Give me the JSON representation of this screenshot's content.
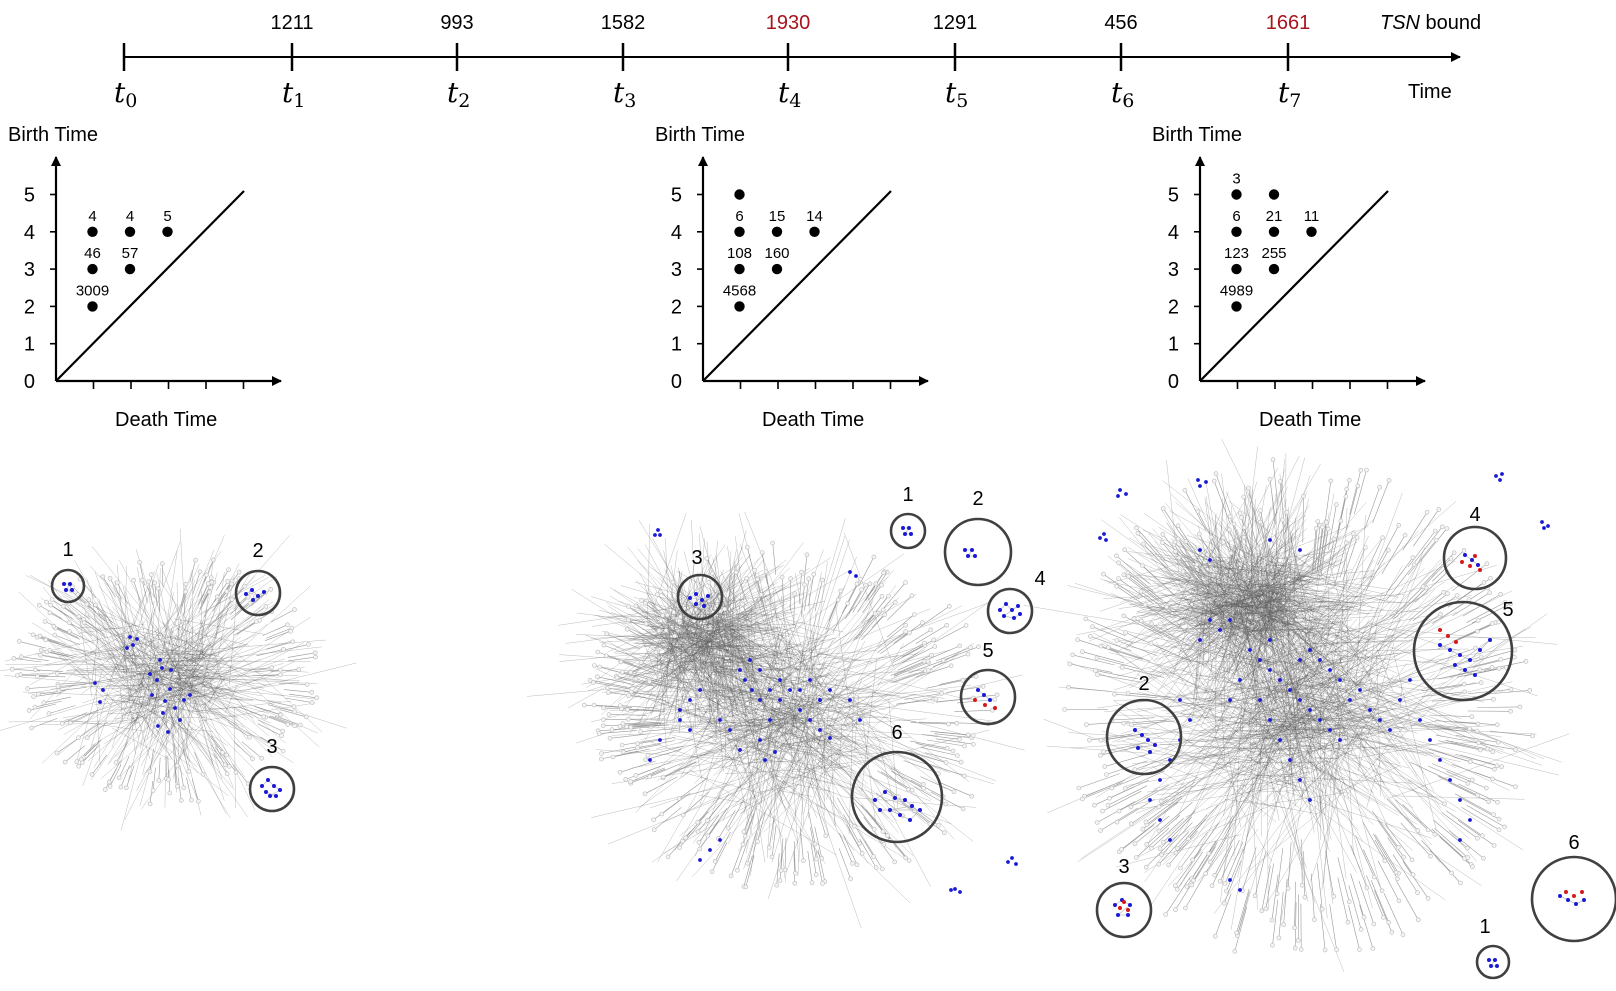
{
  "timeline": {
    "bounds": [
      {
        "value": "1211",
        "highlight": false
      },
      {
        "value": "993",
        "highlight": false
      },
      {
        "value": "1582",
        "highlight": false
      },
      {
        "value": "1930",
        "highlight": true
      },
      {
        "value": "1291",
        "highlight": false
      },
      {
        "value": "456",
        "highlight": false
      },
      {
        "value": "1661",
        "highlight": true
      }
    ],
    "time_labels": [
      "t0",
      "t1",
      "t2",
      "t3",
      "t4",
      "t5",
      "t6",
      "t7"
    ],
    "bound_label_italic": "TSN",
    "bound_label_rest": " bound",
    "axis_label": "Time",
    "highlight_color": "#a8141c"
  },
  "diagrams": [
    {
      "ylabel": "Birth Time",
      "xlabel": "Death Time",
      "yticks": [
        "0",
        "1",
        "2",
        "3",
        "4",
        "5"
      ],
      "points": [
        {
          "death": 1,
          "birth": 2,
          "count": "3009"
        },
        {
          "death": 1,
          "birth": 3,
          "count": "46"
        },
        {
          "death": 1,
          "birth": 4,
          "count": "4"
        },
        {
          "death": 2,
          "birth": 3,
          "count": "57"
        },
        {
          "death": 2,
          "birth": 4,
          "count": "4"
        },
        {
          "death": 3,
          "birth": 4,
          "count": "5"
        }
      ]
    },
    {
      "ylabel": "Birth Time",
      "xlabel": "Death Time",
      "yticks": [
        "0",
        "1",
        "2",
        "3",
        "4",
        "5"
      ],
      "points": [
        {
          "death": 1,
          "birth": 2,
          "count": "4568"
        },
        {
          "death": 1,
          "birth": 3,
          "count": "108"
        },
        {
          "death": 1,
          "birth": 4,
          "count": "6"
        },
        {
          "death": 1,
          "birth": 5,
          "count": ""
        },
        {
          "death": 2,
          "birth": 3,
          "count": "160"
        },
        {
          "death": 2,
          "birth": 4,
          "count": "15"
        },
        {
          "death": 3,
          "birth": 4,
          "count": "14"
        }
      ]
    },
    {
      "ylabel": "Birth Time",
      "xlabel": "Death Time",
      "yticks": [
        "0",
        "1",
        "2",
        "3",
        "4",
        "5"
      ],
      "points": [
        {
          "death": 1,
          "birth": 2,
          "count": "4989"
        },
        {
          "death": 1,
          "birth": 3,
          "count": "123"
        },
        {
          "death": 1,
          "birth": 4,
          "count": "6"
        },
        {
          "death": 1,
          "birth": 5,
          "count": "3"
        },
        {
          "death": 2,
          "birth": 3,
          "count": "255"
        },
        {
          "death": 2,
          "birth": 4,
          "count": "21"
        },
        {
          "death": 2,
          "birth": 5,
          "count": ""
        },
        {
          "death": 3,
          "birth": 4,
          "count": "11"
        }
      ]
    }
  ],
  "networks": [
    {
      "circle_labels": [
        "1",
        "2",
        "3"
      ]
    },
    {
      "circle_labels": [
        "1",
        "2",
        "3",
        "4",
        "5",
        "6"
      ]
    },
    {
      "circle_labels": [
        "1",
        "2",
        "3",
        "4",
        "5",
        "6"
      ]
    }
  ],
  "colors": {
    "node_blue": "#1a1ad6",
    "node_red": "#d41a1a",
    "edge": "#5a5a5a",
    "circle": "#404040"
  }
}
